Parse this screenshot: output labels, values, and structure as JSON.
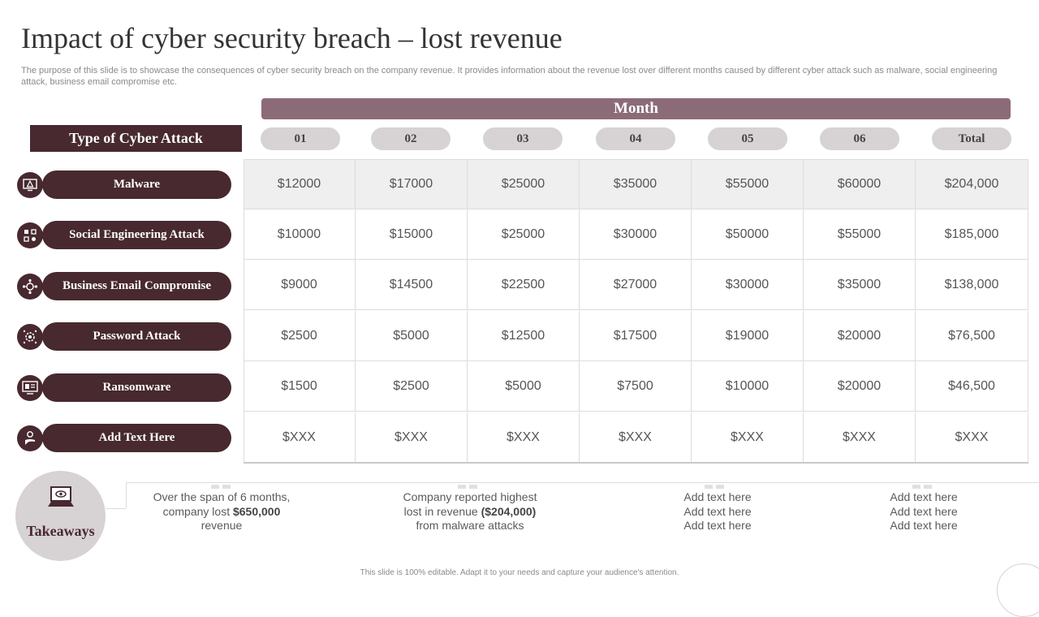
{
  "slide": {
    "title": "Impact of cyber security breach – lost revenue",
    "subtitle": "The purpose of this slide is to showcase the consequences of cyber security breach on the company revenue. It provides information about the revenue lost over different months caused by different cyber attack such as malware, social engineering attack, business email compromise etc.",
    "footer": "This slide is 100% editable. Adapt it to your needs and capture your audience's attention."
  },
  "table": {
    "month_header": "Month",
    "type_header": "Type of Cyber Attack",
    "columns": [
      "01",
      "02",
      "03",
      "04",
      "05",
      "06",
      "Total"
    ],
    "rows": [
      {
        "label": "Malware",
        "icon": "monitor-alert-icon",
        "values": [
          "$12000",
          "$17000",
          "$25000",
          "$35000",
          "$55000",
          "$60000",
          "$204,000"
        ]
      },
      {
        "label": "Social Engineering Attack",
        "icon": "social-network-icon",
        "values": [
          "$10000",
          "$15000",
          "$25000",
          "$30000",
          "$50000",
          "$55000",
          "$185,000"
        ]
      },
      {
        "label": "Business Email Compromise",
        "icon": "email-network-icon",
        "values": [
          "$9000",
          "$14500",
          "$22500",
          "$27000",
          "$30000",
          "$35000",
          "$138,000"
        ]
      },
      {
        "label": "Password Attack",
        "icon": "password-gear-icon",
        "values": [
          "$2500",
          "$5000",
          "$12500",
          "$17500",
          "$19000",
          "$20000",
          "$76,500"
        ]
      },
      {
        "label": "Ransomware",
        "icon": "ransomware-screen-icon",
        "values": [
          "$1500",
          "$2500",
          "$5000",
          "$7500",
          "$10000",
          "$20000",
          "$46,500"
        ]
      },
      {
        "label": "Add Text Here",
        "icon": "hand-coin-icon",
        "values": [
          "$XXX",
          "$XXX",
          "$XXX",
          "$XXX",
          "$XXX",
          "$XXX",
          "$XXX"
        ]
      }
    ]
  },
  "takeaways": {
    "label": "Takeaways",
    "icon": "laptop-eye-icon",
    "items": [
      {
        "before": "Over the span of 6 months, company lost ",
        "bold": "$650,000",
        "after": " revenue"
      },
      {
        "before": "Company reported highest lost in revenue ",
        "bold": "($204,000)",
        "after": " from malware attacks"
      },
      {
        "before": "Add text here Add text here Add text here",
        "bold": "",
        "after": ""
      },
      {
        "before": "Add text here Add text here Add text here",
        "bold": "",
        "after": ""
      }
    ]
  },
  "colors": {
    "dark_maroon": "#47292f",
    "mauve": "#8c6b78",
    "light_gray": "#d7d2d4"
  }
}
